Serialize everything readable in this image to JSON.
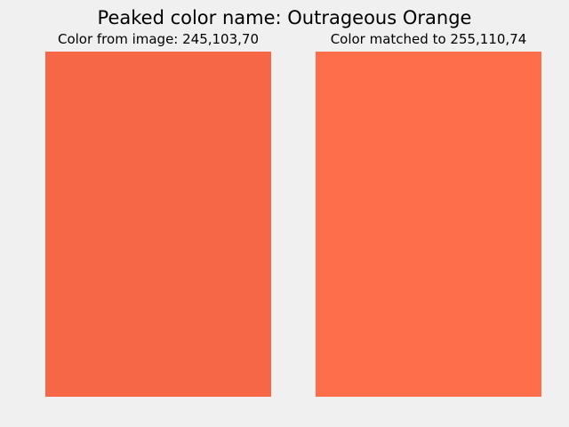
{
  "title": "Peaked color name: Outrageous Orange",
  "panels": [
    {
      "label": "Color from image: 245,103,70",
      "color": "#f56746"
    },
    {
      "label": "Color matched to 255,110,74",
      "color": "#ff6e4a"
    }
  ]
}
